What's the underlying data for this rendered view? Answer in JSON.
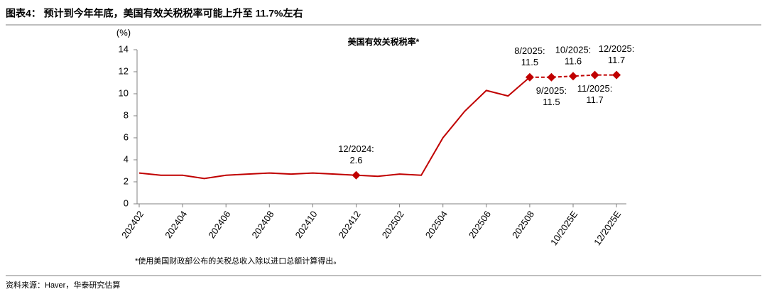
{
  "header": {
    "title": "图表4：  预计到今年年底，美国有效关税税率可能上升至 11.7%左右"
  },
  "chart_data": {
    "type": "line",
    "title": "美国有效关税税率*",
    "y_unit": "(%)",
    "categories": [
      "202402",
      null,
      "202404",
      null,
      "202406",
      null,
      "202408",
      null,
      "202410",
      null,
      "202412",
      null,
      "202502",
      null,
      "202504",
      null,
      "202506",
      null,
      "202508",
      null,
      "10/2025E",
      null,
      "12/2025E"
    ],
    "values": [
      2.8,
      2.6,
      2.6,
      2.3,
      2.6,
      2.7,
      2.8,
      2.7,
      2.8,
      2.7,
      2.6,
      2.5,
      2.7,
      2.6,
      6.0,
      8.4,
      10.3,
      9.8,
      11.5,
      11.5,
      11.6,
      11.7,
      11.7
    ],
    "value_labels": [
      null,
      null,
      null,
      null,
      null,
      null,
      null,
      null,
      null,
      null,
      [
        "12/2024:",
        "2.6"
      ],
      null,
      null,
      null,
      null,
      null,
      null,
      null,
      [
        "8/2025:",
        "11.5"
      ],
      [
        "9/2025:",
        "11.5"
      ],
      [
        "10/2025:",
        "11.6"
      ],
      [
        "11/2025:",
        "11.7"
      ],
      [
        "12/2025:",
        "11.7"
      ]
    ],
    "dashed_from": "202508",
    "color": "#c00000",
    "ylim": [
      0,
      14
    ],
    "yticks": [
      0,
      2,
      4,
      6,
      8,
      10,
      12,
      14
    ],
    "grid": false
  },
  "footnote": "*使用美国财政部公布的关税总收入除以进口总额计算得出。",
  "source": "资料来源：Haver，华泰研究估算"
}
